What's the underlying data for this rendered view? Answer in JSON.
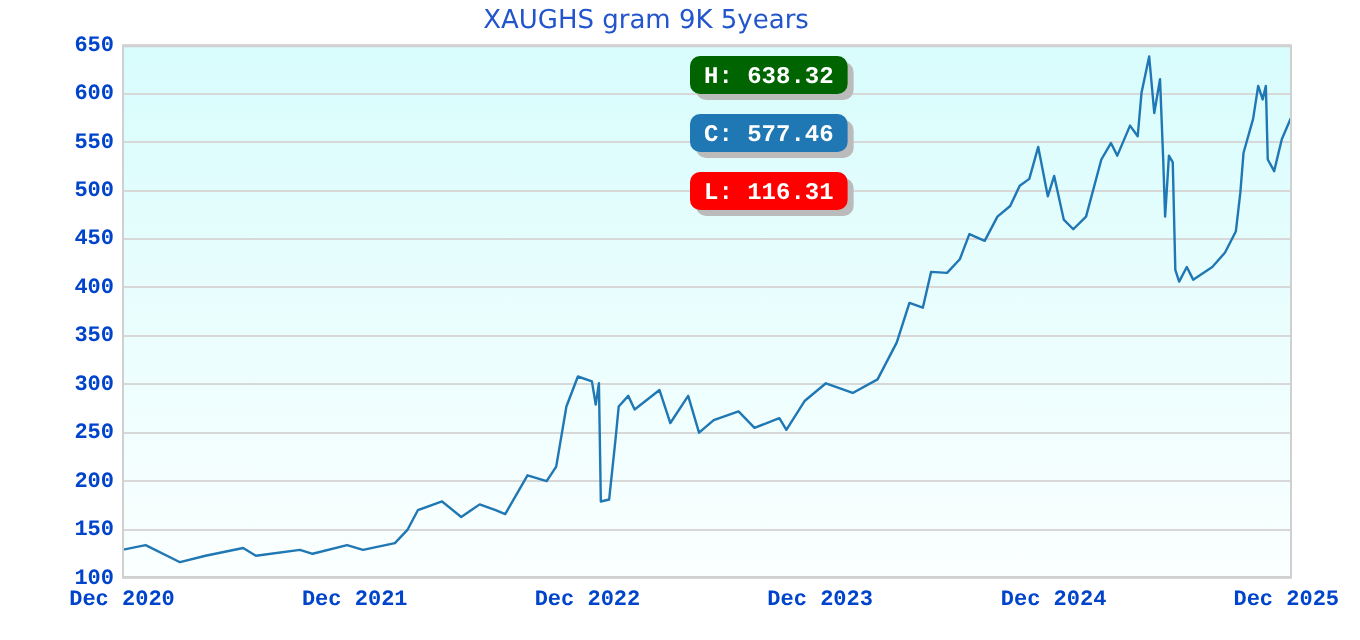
{
  "chart_data": {
    "type": "line",
    "title": "XAUGHS gram 9K 5years",
    "annotations": [
      "H: 638.32",
      "C: 577.46",
      "L: 116.31"
    ],
    "series": [
      {
        "color": "#1f77b4",
        "x": [
          "2020-12-01",
          "2021-01-07",
          "2021-03-02",
          "2021-04-11",
          "2021-06-09",
          "2021-06-29",
          "2021-09-06",
          "2021-09-26",
          "2021-11-19",
          "2021-12-14",
          "2022-02-02",
          "2022-02-22",
          "2022-03-10",
          "2022-04-17",
          "2022-05-17",
          "2022-06-15",
          "2022-07-10",
          "2022-07-25",
          "2022-08-29",
          "2022-09-28",
          "2022-10-13",
          "2022-10-29",
          "2022-11-16",
          "2022-12-08",
          "2022-12-14",
          "2022-12-19",
          "2022-12-22",
          "2023-01-04",
          "2023-01-14",
          "2023-01-19",
          "2023-02-03",
          "2023-02-13",
          "2023-03-24",
          "2023-04-10",
          "2023-05-08",
          "2023-05-25",
          "2023-06-17",
          "2023-07-26",
          "2023-08-20",
          "2023-09-28",
          "2023-10-09",
          "2023-11-07",
          "2023-12-10",
          "2024-01-21",
          "2024-02-29",
          "2024-03-30",
          "2024-04-19",
          "2024-05-10",
          "2024-05-23",
          "2024-06-17",
          "2024-07-07",
          "2024-07-22",
          "2024-08-15",
          "2024-09-04",
          "2024-09-24",
          "2024-10-09",
          "2024-10-24",
          "2024-11-07",
          "2024-11-22",
          "2024-12-02",
          "2024-12-17",
          "2025-01-01",
          "2025-01-21",
          "2025-02-14",
          "2025-03-01",
          "2025-03-11",
          "2025-03-31",
          "2025-04-12",
          "2025-04-18",
          "2025-04-30",
          "2025-05-08",
          "2025-05-17",
          "2025-05-22",
          "2025-05-25",
          "2025-05-31",
          "2025-06-06",
          "2025-06-10",
          "2025-06-16",
          "2025-06-28",
          "2025-07-08",
          "2025-08-07",
          "2025-08-27",
          "2025-09-13",
          "2025-09-20",
          "2025-09-25",
          "2025-10-10",
          "2025-10-18",
          "2025-10-25",
          "2025-10-30",
          "2025-11-02",
          "2025-11-12",
          "2025-11-24",
          "2025-12-10"
        ],
        "values": [
          129,
          134,
          116.31,
          123,
          131,
          123,
          129,
          125,
          134,
          129,
          136,
          150,
          170,
          179,
          163,
          176,
          170,
          166,
          206,
          200,
          215,
          277,
          308,
          303,
          279,
          301,
          179,
          181,
          243,
          277,
          288,
          274,
          294,
          260,
          288,
          250,
          263,
          272,
          255,
          265,
          253,
          283,
          301,
          291,
          305,
          343,
          384,
          379,
          416,
          415,
          429,
          455,
          448,
          473,
          484,
          505,
          512,
          545,
          494,
          515,
          470,
          460,
          473,
          532,
          549,
          536,
          567,
          556,
          601,
          638.32,
          580,
          615,
          532,
          473,
          536,
          529,
          418,
          406,
          421,
          408,
          421,
          436,
          458,
          498,
          539,
          574,
          608,
          594,
          608,
          532,
          520,
          553,
          577.46
        ]
      }
    ],
    "xlim": [
      "2020-12-01",
      "2025-12-10"
    ],
    "xticks": [
      {
        "value": "2020-12-01",
        "label": "Dec 2020"
      },
      {
        "value": "2021-12-01",
        "label": "Dec 2021"
      },
      {
        "value": "2022-12-01",
        "label": "Dec 2022"
      },
      {
        "value": "2023-12-01",
        "label": "Dec 2023"
      },
      {
        "value": "2024-12-01",
        "label": "Dec 2024"
      },
      {
        "value": "2025-12-01",
        "label": "Dec 2025"
      }
    ],
    "ylim": [
      100,
      650
    ],
    "yticks": [
      100,
      150,
      200,
      250,
      300,
      350,
      400,
      450,
      500,
      550,
      600,
      650
    ],
    "grid": "y",
    "legend": false,
    "marker": "none",
    "line_style": "solid"
  }
}
